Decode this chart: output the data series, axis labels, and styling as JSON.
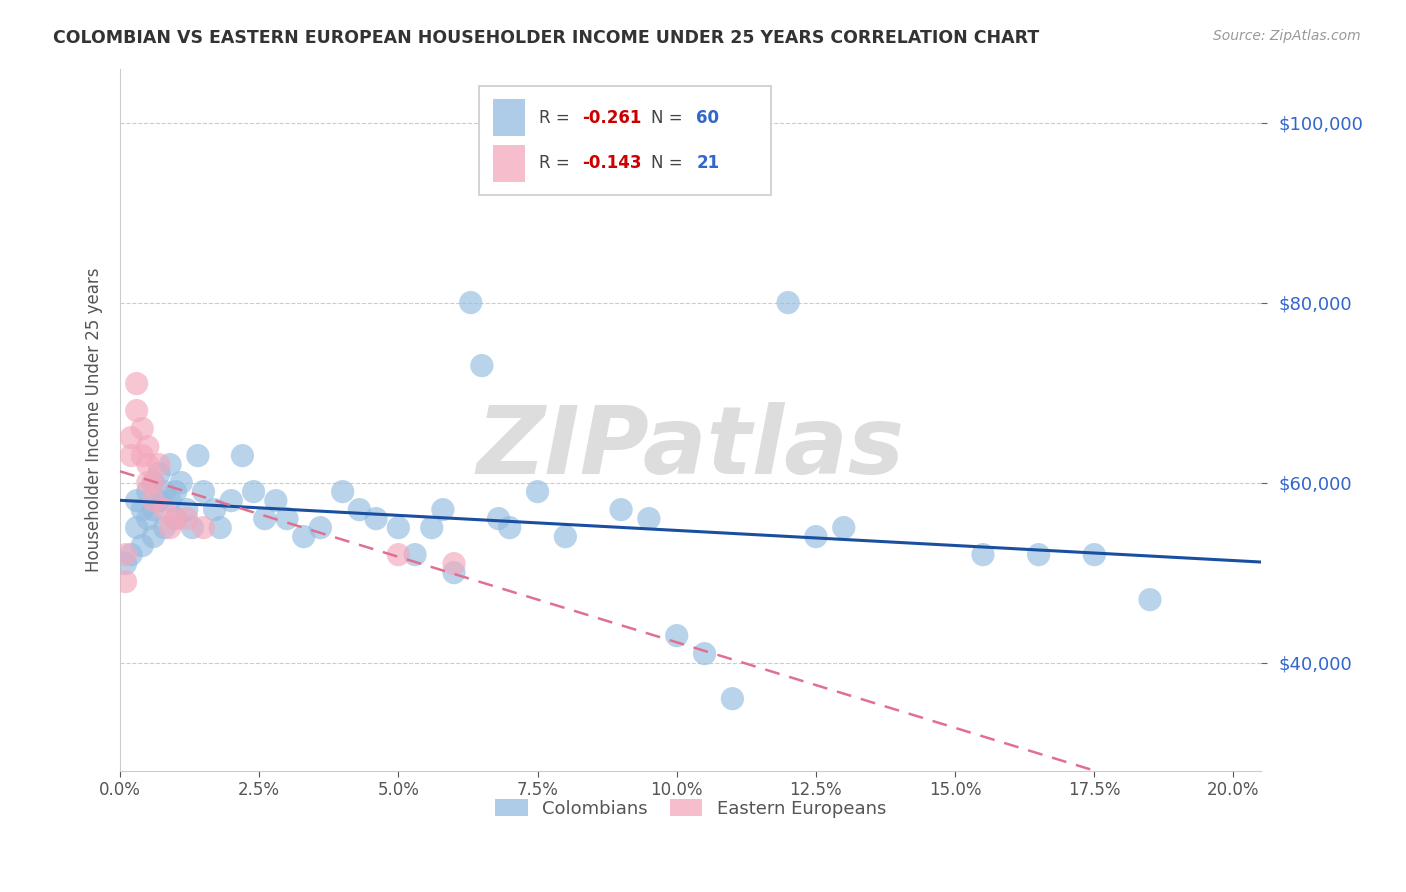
{
  "title": "COLOMBIAN VS EASTERN EUROPEAN HOUSEHOLDER INCOME UNDER 25 YEARS CORRELATION CHART",
  "source": "Source: ZipAtlas.com",
  "xlim": [
    0.0,
    0.205
  ],
  "ylim": [
    28000,
    106000
  ],
  "colombian_color": "#93bce0",
  "eastern_color": "#f4a8bc",
  "trendline_blue": "#1a4fa0",
  "trendline_pink": "#e07090",
  "watermark": "ZIPatlas",
  "colombians_label": "Colombians",
  "eastern_label": "Eastern Europeans",
  "ylabel": "Householder Income Under 25 years",
  "colombian_x": [
    0.001,
    0.002,
    0.003,
    0.003,
    0.004,
    0.004,
    0.005,
    0.005,
    0.006,
    0.006,
    0.006,
    0.007,
    0.007,
    0.008,
    0.008,
    0.009,
    0.009,
    0.01,
    0.01,
    0.011,
    0.012,
    0.013,
    0.014,
    0.015,
    0.017,
    0.018,
    0.02,
    0.022,
    0.024,
    0.026,
    0.028,
    0.03,
    0.033,
    0.036,
    0.04,
    0.043,
    0.046,
    0.05,
    0.053,
    0.056,
    0.058,
    0.06,
    0.063,
    0.065,
    0.068,
    0.07,
    0.075,
    0.08,
    0.09,
    0.095,
    0.1,
    0.105,
    0.11,
    0.12,
    0.125,
    0.13,
    0.155,
    0.165,
    0.175,
    0.185
  ],
  "colombian_y": [
    51000,
    52000,
    55000,
    58000,
    57000,
    53000,
    59000,
    56000,
    60000,
    57000,
    54000,
    61000,
    58000,
    59000,
    55000,
    62000,
    58000,
    59000,
    56000,
    60000,
    57000,
    55000,
    63000,
    59000,
    57000,
    55000,
    58000,
    63000,
    59000,
    56000,
    58000,
    56000,
    54000,
    55000,
    59000,
    57000,
    56000,
    55000,
    52000,
    55000,
    57000,
    50000,
    80000,
    73000,
    56000,
    55000,
    59000,
    54000,
    57000,
    56000,
    43000,
    41000,
    36000,
    80000,
    54000,
    55000,
    52000,
    52000,
    52000,
    47000
  ],
  "eastern_x": [
    0.001,
    0.001,
    0.002,
    0.002,
    0.003,
    0.003,
    0.004,
    0.004,
    0.005,
    0.005,
    0.005,
    0.006,
    0.006,
    0.007,
    0.008,
    0.009,
    0.01,
    0.012,
    0.015,
    0.05,
    0.06
  ],
  "eastern_y": [
    52000,
    49000,
    65000,
    63000,
    71000,
    68000,
    63000,
    66000,
    60000,
    62000,
    64000,
    60000,
    58000,
    62000,
    57000,
    55000,
    56000,
    56000,
    55000,
    52000,
    51000
  ]
}
